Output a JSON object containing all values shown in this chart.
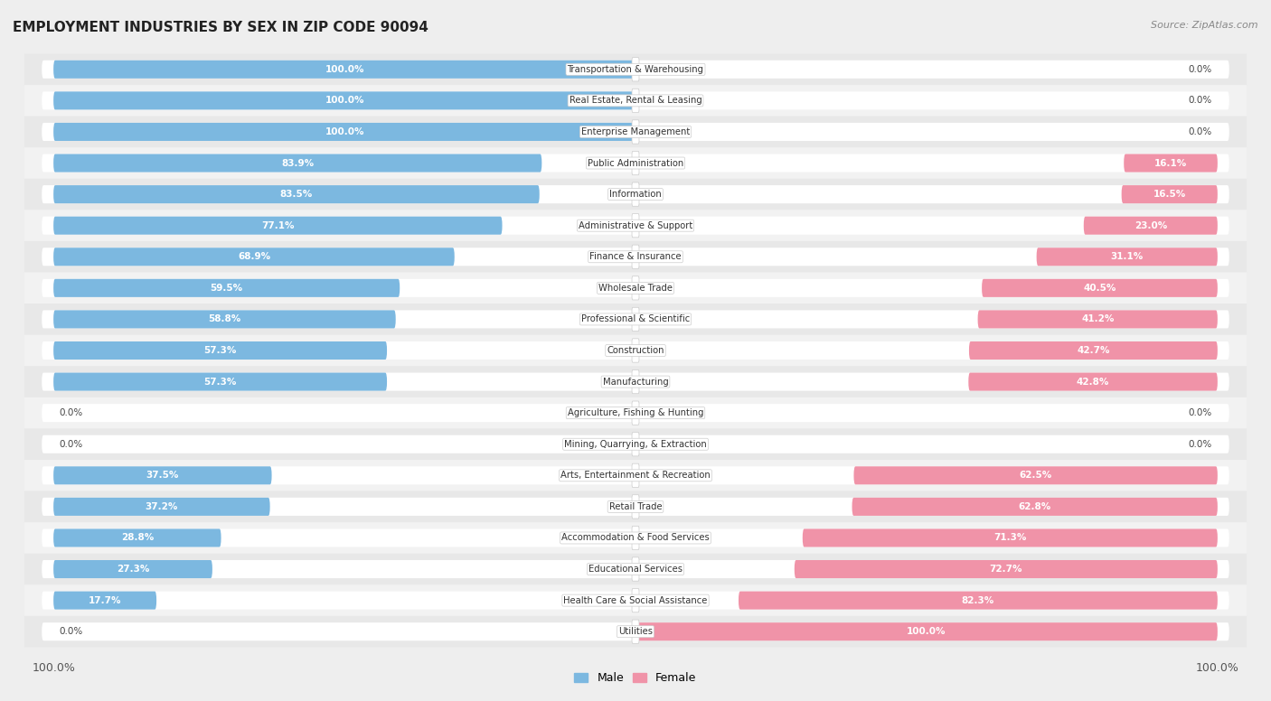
{
  "title": "EMPLOYMENT INDUSTRIES BY SEX IN ZIP CODE 90094",
  "source": "Source: ZipAtlas.com",
  "male_color": "#7cb8e0",
  "female_color": "#f093a8",
  "background_color": "#eeeeee",
  "row_bg_odd": "#e8e8e8",
  "row_bg_even": "#f2f2f2",
  "pill_bg": "#ffffff",
  "label_box_color": "#ffffff",
  "categories": [
    "Transportation & Warehousing",
    "Real Estate, Rental & Leasing",
    "Enterprise Management",
    "Public Administration",
    "Information",
    "Administrative & Support",
    "Finance & Insurance",
    "Wholesale Trade",
    "Professional & Scientific",
    "Construction",
    "Manufacturing",
    "Agriculture, Fishing & Hunting",
    "Mining, Quarrying, & Extraction",
    "Arts, Entertainment & Recreation",
    "Retail Trade",
    "Accommodation & Food Services",
    "Educational Services",
    "Health Care & Social Assistance",
    "Utilities"
  ],
  "male_pct": [
    100.0,
    100.0,
    100.0,
    83.9,
    83.5,
    77.1,
    68.9,
    59.5,
    58.8,
    57.3,
    57.3,
    0.0,
    0.0,
    37.5,
    37.2,
    28.8,
    27.3,
    17.7,
    0.0
  ],
  "female_pct": [
    0.0,
    0.0,
    0.0,
    16.1,
    16.5,
    23.0,
    31.1,
    40.5,
    41.2,
    42.7,
    42.8,
    0.0,
    0.0,
    62.5,
    62.8,
    71.3,
    72.7,
    82.3,
    100.0
  ]
}
